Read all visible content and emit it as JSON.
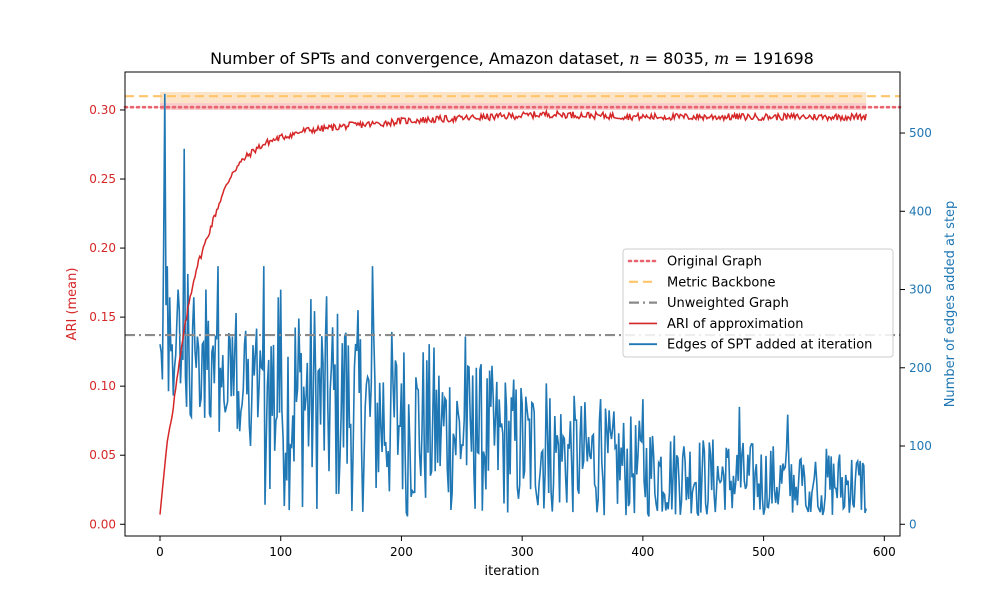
{
  "chart_data": {
    "type": "line",
    "title": "Number of SPTs and convergence, Amazon dataset, n = 8035, m = 191698",
    "title_parts": {
      "prefix": "Number of SPTs and convergence, Amazon dataset, ",
      "n_var": "n",
      "eq1": " = 8035, ",
      "m_var": "m",
      "eq2": " = 191698"
    },
    "xlabel": "iteration",
    "ylabel_left": "ARI (mean)",
    "ylabel_right": "Number of edges added at step",
    "xlim": [
      -29,
      613
    ],
    "ylim_left": [
      -0.0085,
      0.3275
    ],
    "ylim_right": [
      -15,
      578
    ],
    "xticks": [
      0,
      100,
      200,
      300,
      400,
      500,
      600
    ],
    "yticks_left": [
      0.0,
      0.05,
      0.1,
      0.15,
      0.2,
      0.25,
      0.3
    ],
    "yticks_right": [
      0,
      100,
      200,
      300,
      400,
      500
    ],
    "legend_position": "center-right",
    "colors": {
      "ari": "#d62728",
      "edges": "#1f77b4",
      "original": "#e8636e",
      "backbone": "#ffc56b",
      "unweighted": "#8a8a8a",
      "band": "#f6b5b5",
      "band_outer": "#fbd9b0"
    },
    "reference_lines": [
      {
        "name": "Original Graph",
        "axis": "left",
        "y": 0.302,
        "style": "dotted",
        "color": "#e8636e"
      },
      {
        "name": "Metric Backbone",
        "axis": "left",
        "y": 0.31,
        "style": "dashed",
        "color": "#ffc56b"
      },
      {
        "name": "Unweighted Graph",
        "axis": "left",
        "y": 0.137,
        "style": "dashdot",
        "color": "#8a8a8a"
      }
    ],
    "band": {
      "axis": "left",
      "x": [
        0,
        585
      ],
      "y": [
        0.3,
        0.305
      ],
      "y_outer": [
        0.305,
        0.313
      ]
    },
    "series": [
      {
        "name": "ARI of approximation",
        "axis": "left",
        "color": "#d62728",
        "anchors": [
          [
            0,
            0.007
          ],
          [
            2,
            0.025
          ],
          [
            6,
            0.06
          ],
          [
            10,
            0.08
          ],
          [
            15,
            0.11
          ],
          [
            20,
            0.14
          ],
          [
            25,
            0.165
          ],
          [
            30,
            0.185
          ],
          [
            40,
            0.21
          ],
          [
            50,
            0.235
          ],
          [
            60,
            0.255
          ],
          [
            70,
            0.265
          ],
          [
            80,
            0.272
          ],
          [
            90,
            0.277
          ],
          [
            100,
            0.28
          ],
          [
            120,
            0.285
          ],
          [
            140,
            0.287
          ],
          [
            160,
            0.289
          ],
          [
            180,
            0.29
          ],
          [
            200,
            0.292
          ],
          [
            250,
            0.294
          ],
          [
            300,
            0.296
          ],
          [
            320,
            0.297
          ],
          [
            400,
            0.295
          ],
          [
            500,
            0.295
          ],
          [
            585,
            0.295
          ]
        ],
        "noise": 0.0025
      },
      {
        "name": "Edges of SPT added at iteration",
        "axis": "right",
        "color": "#1f77b4",
        "spikes": [
          [
            0,
            230
          ],
          [
            1,
            220
          ],
          [
            2,
            185
          ],
          [
            3,
            350
          ],
          [
            4,
            550
          ],
          [
            5,
            280
          ],
          [
            6,
            330
          ],
          [
            7,
            170
          ],
          [
            8,
            290
          ],
          [
            10,
            230
          ],
          [
            12,
            200
          ],
          [
            14,
            260
          ],
          [
            15,
            300
          ],
          [
            17,
            180
          ],
          [
            19,
            210
          ],
          [
            20,
            480
          ],
          [
            21,
            190
          ],
          [
            22,
            150
          ],
          [
            23,
            320
          ],
          [
            25,
            140
          ],
          [
            28,
            290
          ],
          [
            30,
            200
          ],
          [
            33,
            150
          ],
          [
            35,
            230
          ],
          [
            38,
            300
          ],
          [
            40,
            260
          ],
          [
            43,
            220
          ],
          [
            45,
            180
          ],
          [
            48,
            330
          ],
          [
            50,
            200
          ],
          [
            55,
            150
          ],
          [
            60,
            240
          ],
          [
            63,
            270
          ],
          [
            65,
            170
          ],
          [
            70,
            230
          ],
          [
            75,
            100
          ],
          [
            78,
            190
          ],
          [
            80,
            250
          ],
          [
            84,
            200
          ],
          [
            86,
            330
          ],
          [
            87,
            25
          ],
          [
            90,
            210
          ]
        ],
        "mean_anchors": [
          [
            90,
            170
          ],
          [
            150,
            150
          ],
          [
            200,
            130
          ],
          [
            250,
            115
          ],
          [
            300,
            100
          ],
          [
            350,
            85
          ],
          [
            400,
            70
          ],
          [
            450,
            60
          ],
          [
            500,
            55
          ],
          [
            585,
            50
          ]
        ],
        "highlights": [
          [
            98,
            290
          ],
          [
            102,
            110
          ],
          [
            153,
            240
          ],
          [
            176,
            330
          ],
          [
            200,
            180
          ],
          [
            205,
            10
          ],
          [
            253,
            240
          ],
          [
            262,
            200
          ],
          [
            320,
            180
          ],
          [
            322,
            40
          ],
          [
            365,
            160
          ],
          [
            400,
            160
          ],
          [
            480,
            150
          ],
          [
            520,
            140
          ],
          [
            566,
            20
          ],
          [
            583,
            75
          ],
          [
            585,
            20
          ]
        ]
      }
    ]
  }
}
